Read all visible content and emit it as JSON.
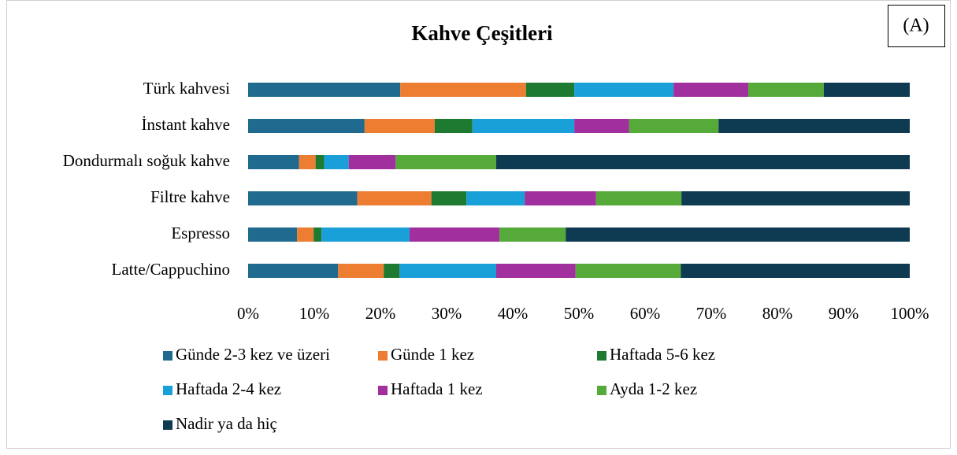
{
  "chart_data": {
    "type": "stacked_bar_horizontal",
    "title": "Kahve Çeşitleri",
    "annotation": "(A)",
    "categories": [
      "Türk kahvesi",
      "İnstant kahve",
      "Dondurmalı soğuk kahve",
      "Filtre kahve",
      "Espresso",
      "Latte/Cappuchino"
    ],
    "series": [
      {
        "name": "Günde 2-3 kez ve üzeri",
        "color": "#1f6a8e",
        "values": [
          23.0,
          17.6,
          7.7,
          16.5,
          7.4,
          13.6
        ]
      },
      {
        "name": "Günde 1 kez",
        "color": "#ed7d31",
        "values": [
          19.0,
          10.6,
          2.5,
          11.2,
          2.5,
          6.9
        ]
      },
      {
        "name": "Haftada 5-6 kez",
        "color": "#1e7a30",
        "values": [
          7.3,
          5.7,
          1.3,
          5.3,
          1.2,
          2.4
        ]
      },
      {
        "name": "Haftada 2-4 kez",
        "color": "#1aa0d8",
        "values": [
          15.0,
          15.4,
          3.7,
          8.8,
          13.3,
          14.6
        ]
      },
      {
        "name": "Haftada 1 kez",
        "color": "#a1309e",
        "values": [
          11.3,
          8.3,
          7.1,
          10.8,
          13.6,
          12.0
        ]
      },
      {
        "name": "Ayda 1-2 kez",
        "color": "#56aa3a",
        "values": [
          11.4,
          13.5,
          15.2,
          12.9,
          10.0,
          15.9
        ]
      },
      {
        "name": "Nadir ya da hiç",
        "color": "#0e3b52",
        "values": [
          13.0,
          28.9,
          62.5,
          34.5,
          52.0,
          34.6
        ]
      }
    ],
    "xlim": [
      0,
      100
    ],
    "xticks": [
      {
        "value": 0,
        "label": "0%"
      },
      {
        "value": 10,
        "label": "10%"
      },
      {
        "value": 20,
        "label": "20%"
      },
      {
        "value": 30,
        "label": "30%"
      },
      {
        "value": 40,
        "label": "40%"
      },
      {
        "value": 50,
        "label": "50%"
      },
      {
        "value": 60,
        "label": "60%"
      },
      {
        "value": 70,
        "label": "70%"
      },
      {
        "value": 80,
        "label": "80%"
      },
      {
        "value": 90,
        "label": "90%"
      },
      {
        "value": 100,
        "label": "100%"
      }
    ],
    "grid": false,
    "legend": "bottom"
  }
}
